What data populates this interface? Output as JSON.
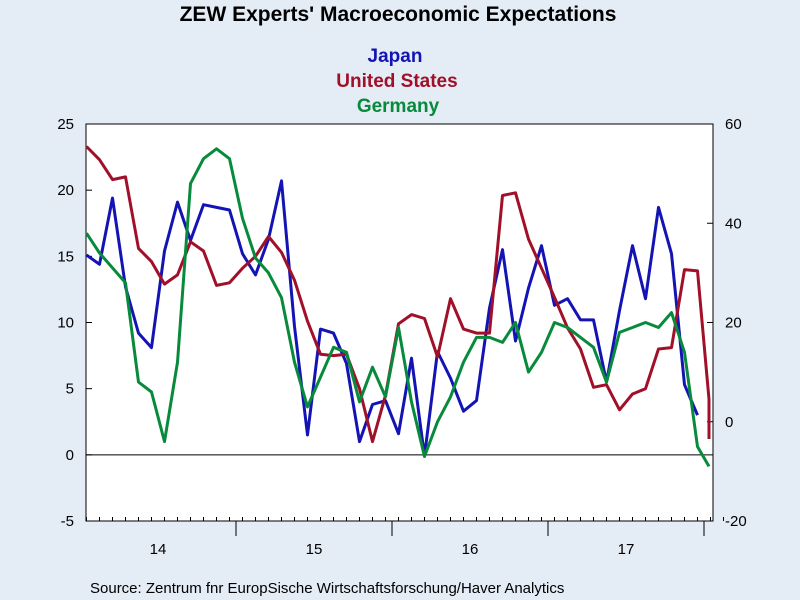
{
  "chart_data": {
    "type": "line",
    "title": "ZEW Experts' Macroeconomic Expectations",
    "source": "Source:  Zentrum fnr EuropSische Wirtschaftsforschung/Haver Analytics",
    "x_labels": [
      "14",
      "15",
      "16",
      "17"
    ],
    "y_left": {
      "ylim": [
        -5,
        25
      ],
      "ticks": [
        -5,
        0,
        5,
        10,
        15,
        20,
        25
      ]
    },
    "y_right": {
      "ylim": [
        -20,
        60
      ],
      "ticks": [
        -20,
        0,
        20,
        40,
        60
      ]
    },
    "series": [
      {
        "name": "Japan",
        "color": "#1414b4",
        "axis": "left",
        "values": [
          15.1,
          14.4,
          19.4,
          12.7,
          9.2,
          8.1,
          15.4,
          19.1,
          16.2,
          18.9,
          18.7,
          18.5,
          15.2,
          13.6,
          16.3,
          20.7,
          9.7,
          1.5,
          9.5,
          9.2,
          6.9,
          1.0,
          3.8,
          4.1,
          1.6,
          7.3,
          -0.1,
          7.8,
          5.8,
          3.3,
          4.1,
          11.1,
          15.5,
          8.6,
          12.6,
          15.8,
          11.3,
          11.8,
          10.2,
          10.2,
          5.5,
          10.9,
          15.8,
          11.8,
          18.7,
          15.2,
          5.3,
          3.0
        ]
      },
      {
        "name": "United States",
        "color": "#a01028",
        "axis": "left",
        "values": [
          23.3,
          22.3,
          20.8,
          21.0,
          15.6,
          14.6,
          12.9,
          13.6,
          16.1,
          15.4,
          12.8,
          13.0,
          14.1,
          15.0,
          16.5,
          15.3,
          13.2,
          10.1,
          7.6,
          7.5,
          7.6,
          5.0,
          1.0,
          4.5,
          9.9,
          10.6,
          10.3,
          7.4,
          11.8,
          9.5,
          9.2,
          9.2,
          19.6,
          19.8,
          16.3,
          14.1,
          11.9,
          9.6,
          8.0,
          5.1,
          5.3,
          3.4,
          4.6,
          5.0,
          8.0,
          8.1,
          14.0,
          13.9,
          4.2,
          1.2
        ]
      },
      {
        "name": "Germany",
        "color": "#088a3c",
        "axis": "right",
        "values": [
          38,
          34,
          31,
          28,
          8,
          6,
          -4,
          12,
          48,
          53,
          55,
          53,
          41,
          33,
          30,
          25,
          12,
          3,
          9,
          15,
          14,
          4,
          11,
          5,
          19,
          4,
          -7,
          0,
          5,
          12,
          17,
          17,
          16,
          20,
          10,
          14,
          20,
          19,
          17,
          15,
          8,
          18,
          19,
          20,
          19,
          22,
          14,
          -5,
          -9
        ]
      }
    ]
  }
}
